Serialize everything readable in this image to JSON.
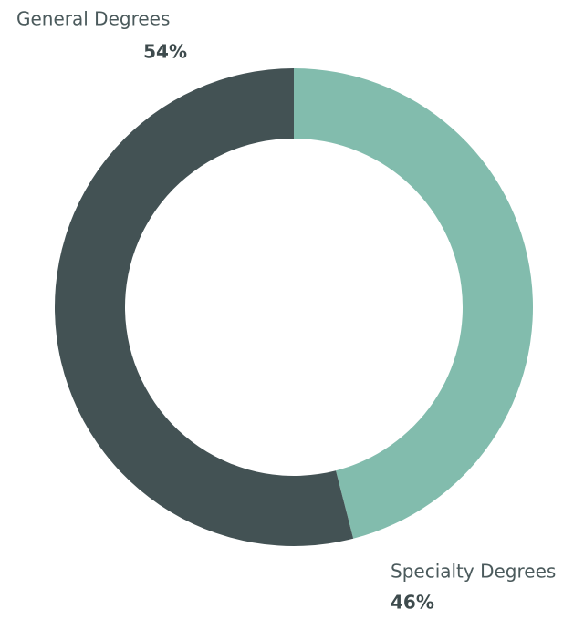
{
  "chart_data": {
    "type": "donut",
    "categories": [
      "Specialty Degrees",
      "General Degrees"
    ],
    "values": [
      46,
      54
    ],
    "value_labels": [
      "46%",
      "54%"
    ],
    "colors": [
      "#82bcad",
      "#435254"
    ]
  }
}
